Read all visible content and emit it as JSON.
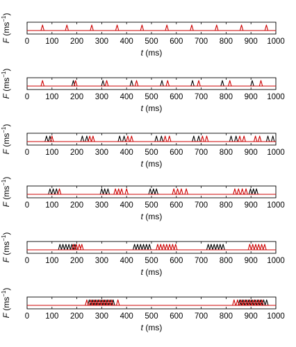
{
  "chart_data": [
    {
      "type": "line",
      "xlabel_main": "t",
      "xlabel_unit": " (ms)",
      "ylabel_main": "F",
      "ylabel_unit": " (ms",
      "ylabel_sup": "−1",
      "ylabel_close": ")",
      "xlim": [
        0,
        1000
      ],
      "xticks": [
        "0",
        "100",
        "200",
        "300",
        "400",
        "500",
        "600",
        "700",
        "800",
        "900",
        "1000"
      ],
      "series": [
        {
          "color": "#000000",
          "spikes": []
        },
        {
          "color": "#cc0000",
          "spikes": [
            62,
            160,
            260,
            362,
            462,
            562,
            662,
            762,
            862,
            962
          ]
        }
      ]
    },
    {
      "type": "line",
      "xlabel_main": "t",
      "xlabel_unit": " (ms)",
      "ylabel_main": "F",
      "ylabel_unit": " (ms",
      "ylabel_sup": "−1",
      "ylabel_close": ")",
      "xlim": [
        0,
        1000
      ],
      "xticks": [
        "0",
        "100",
        "200",
        "300",
        "400",
        "500",
        "600",
        "700",
        "800",
        "900",
        "1000"
      ],
      "series": [
        {
          "color": "#000000",
          "spikes": [
            186,
            305,
            420,
            542,
            665,
            785,
            905
          ]
        },
        {
          "color": "#cc0000",
          "spikes": [
            62,
            195,
            320,
            440,
            565,
            690,
            815,
            940
          ]
        }
      ]
    },
    {
      "type": "line",
      "xlabel_main": "t",
      "xlabel_unit": " (ms)",
      "ylabel_main": "F",
      "ylabel_unit": " (ms",
      "ylabel_sup": "−1",
      "ylabel_close": ")",
      "xlim": [
        0,
        1000
      ],
      "xticks": [
        "0",
        "100",
        "200",
        "300",
        "400",
        "500",
        "600",
        "700",
        "800",
        "900",
        "1000"
      ],
      "series": [
        {
          "color": "#000000",
          "spikes": [
            78,
            92,
            222,
            240,
            372,
            390,
            520,
            540,
            670,
            690,
            820,
            840,
            968,
            988
          ]
        },
        {
          "color": "#cc0000",
          "spikes": [
            100,
            252,
            265,
            405,
            420,
            555,
            572,
            705,
            722,
            855,
            872,
            918,
            935
          ]
        }
      ]
    },
    {
      "type": "line",
      "xlabel_main": "t",
      "xlabel_unit": " (ms)",
      "ylabel_main": "F",
      "ylabel_unit": " (ms",
      "ylabel_sup": "−1",
      "ylabel_close": ")",
      "xlim": [
        0,
        1000
      ],
      "xticks": [
        "0",
        "100",
        "200",
        "300",
        "400",
        "500",
        "600",
        "700",
        "800",
        "900",
        "1000"
      ],
      "series": [
        {
          "color": "#000000",
          "spikes": [
            92,
            105,
            118,
            300,
            312,
            325,
            495,
            508,
            520,
            898,
            910,
            922
          ]
        },
        {
          "color": "#cc0000",
          "spikes": [
            130,
            355,
            368,
            380,
            400,
            590,
            605,
            620,
            640,
            835,
            850,
            865,
            880
          ]
        }
      ]
    },
    {
      "type": "line",
      "xlabel_main": "t",
      "xlabel_unit": " (ms)",
      "ylabel_main": "F",
      "ylabel_unit": " (ms",
      "ylabel_sup": "−1",
      "ylabel_close": ")",
      "xlim": [
        0,
        1000
      ],
      "xticks": [
        "0",
        "100",
        "200",
        "300",
        "400",
        "500",
        "600",
        "700",
        "800",
        "900",
        "1000"
      ],
      "series": [
        {
          "color": "#000000",
          "spikes": [
            132,
            144,
            156,
            168,
            180,
            192,
            432,
            444,
            456,
            468,
            480,
            492,
            728,
            740,
            752,
            764,
            776,
            788
          ]
        },
        {
          "color": "#cc0000",
          "spikes": [
            186,
            198,
            210,
            220,
            525,
            537,
            549,
            561,
            573,
            585,
            597,
            895,
            907,
            919,
            931,
            943,
            955
          ]
        }
      ]
    },
    {
      "type": "line",
      "xlabel_main": "t",
      "xlabel_unit": " (ms)",
      "ylabel_main": "F",
      "ylabel_unit": " (ms",
      "ylabel_sup": "−1",
      "ylabel_close": ")",
      "xlim": [
        0,
        1000
      ],
      "xticks": [
        "0",
        "100",
        "200",
        "300",
        "400",
        "500",
        "600",
        "700",
        "800",
        "900",
        "1000"
      ],
      "series": [
        {
          "color": "#000000",
          "spikes": [
            250,
            262,
            274,
            286,
            298,
            310,
            322,
            334,
            346,
            855,
            867,
            879,
            891,
            903,
            915,
            927,
            939,
            951,
            963
          ]
        },
        {
          "color": "#cc0000",
          "spikes": [
            240,
            256,
            268,
            280,
            292,
            304,
            316,
            328,
            340,
            365,
            832,
            846,
            860,
            872,
            884,
            896,
            908,
            920,
            932,
            944
          ]
        }
      ]
    }
  ]
}
